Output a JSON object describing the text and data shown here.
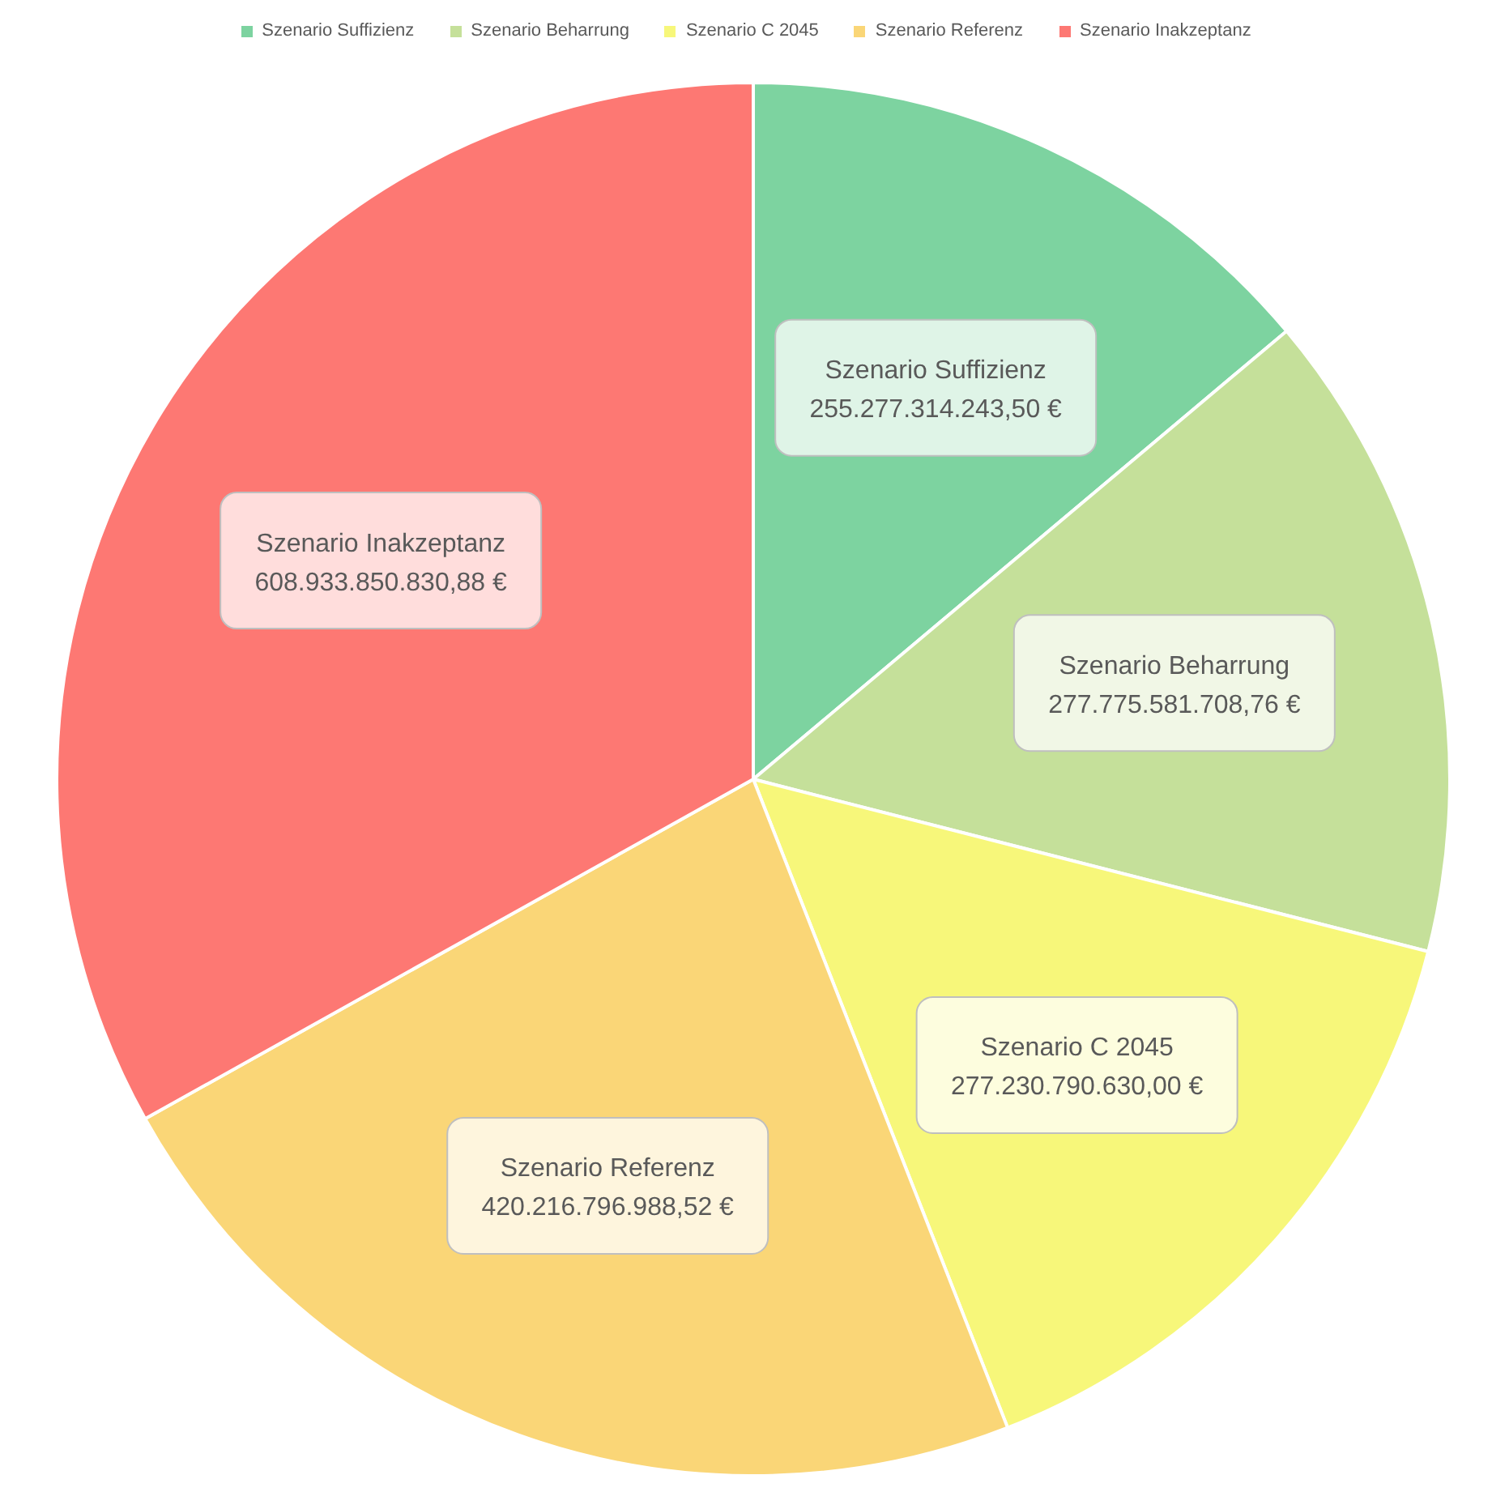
{
  "chart_data": {
    "type": "pie",
    "categories": [
      "Szenario Suffizienz",
      "Szenario Beharrung",
      "Szenario C 2045",
      "Szenario Referenz",
      "Szenario Inakzeptanz"
    ],
    "values": [
      255277314243.5,
      277775581708.76,
      277230790630.0,
      420216796988.52,
      608933850830.88
    ],
    "value_labels": [
      "255.277.314.243,50 €",
      "277.775.581.708,76 €",
      "277.230.790.630,00 €",
      "420.216.796.988,52 €",
      "608.933.850.830,88 €"
    ],
    "colors": [
      "#7dd3a0",
      "#c5e09a",
      "#f7f77a",
      "#fad677",
      "#fd7873"
    ],
    "legend": "top"
  }
}
